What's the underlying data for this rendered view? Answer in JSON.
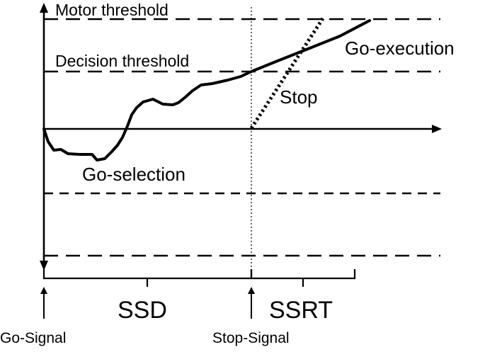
{
  "labels": {
    "motor_threshold": "Motor threshold",
    "decision_threshold": "Decision threshold",
    "go_execution": "Go-execution",
    "stop": "Stop",
    "go_selection": "Go-selection",
    "ssd": "SSD",
    "ssrt": "SSRT",
    "go_signal": "Go-Signal",
    "stop_signal": "Stop-Signal"
  }
}
